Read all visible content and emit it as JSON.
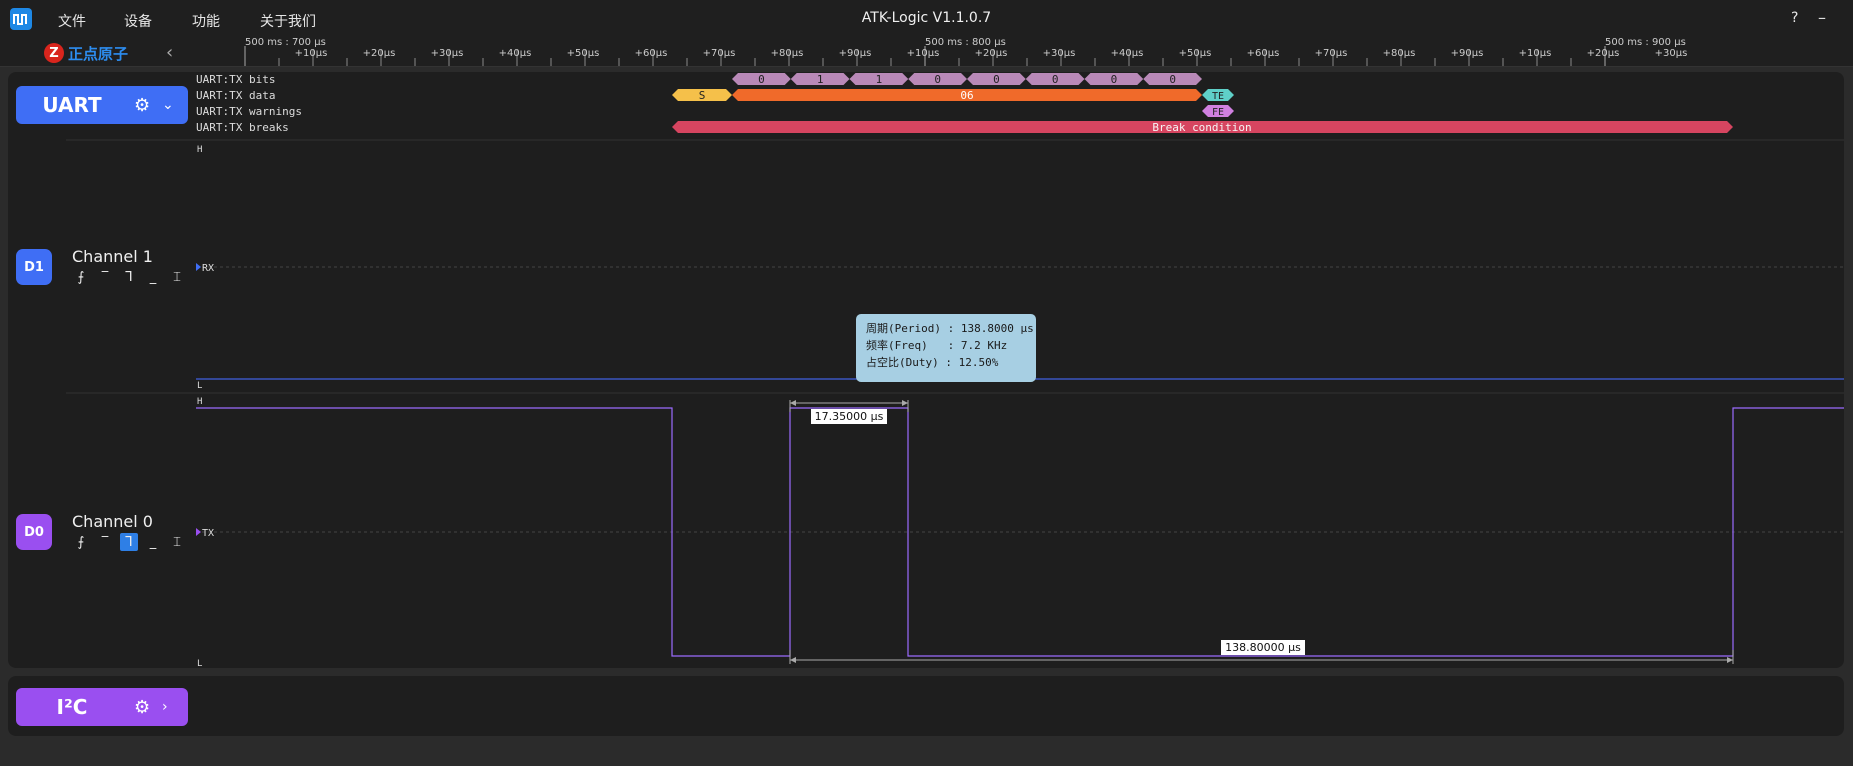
{
  "window": {
    "title": "ATK-Logic  V1.1.0.7",
    "help": "?"
  },
  "menu": [
    "文件",
    "设备",
    "功能",
    "关于我们"
  ],
  "logo": {
    "text": "正点原子"
  },
  "ruler": {
    "top_labels": [
      {
        "text": "500 ms : 700 µs",
        "x": 245
      },
      {
        "text": "500 ms : 800 µs",
        "x": 925
      },
      {
        "text": "500 ms : 900 µs",
        "x": 1605
      }
    ],
    "ticks": [
      "+10µs",
      "+20µs",
      "+30µs",
      "+40µs",
      "+50µs",
      "+60µs",
      "+70µs",
      "+80µs",
      "+90µs",
      "+10µs",
      "+20µs",
      "+30µs",
      "+40µs",
      "+50µs",
      "+60µs",
      "+70µs",
      "+80µs",
      "+90µs",
      "+10µs",
      "+20µs",
      "+30µs"
    ]
  },
  "protocols": [
    {
      "name": "UART",
      "color": "#3f6ef5"
    },
    {
      "name": "I²C",
      "color": "#9a4ff0"
    }
  ],
  "decoder_rows": [
    {
      "label": "UART:TX bits"
    },
    {
      "label": "UART:TX data"
    },
    {
      "label": "UART:TX warnings"
    },
    {
      "label": "UART:TX breaks"
    }
  ],
  "bits": [
    "0",
    "1",
    "1",
    "0",
    "0",
    "0",
    "0",
    "0"
  ],
  "data_start": "S",
  "data_value": "06",
  "data_end": "TE",
  "warning": "FE",
  "break_text": "Break condition",
  "channels": [
    {
      "badge": "D1",
      "name": "Channel 1",
      "signal": "RX",
      "badge_color": "#3f6ef5",
      "line_color": "#4060e0"
    },
    {
      "badge": "D0",
      "name": "Channel 0",
      "signal": "TX",
      "badge_color": "#9a4ff0",
      "line_color": "#9b6bff"
    }
  ],
  "level_high": "H",
  "level_low": "L",
  "measure_pulse": "17.35000 µs",
  "measure_period": "138.80000 µs",
  "tooltip": {
    "line1": "周期(Period) : 138.8000 µs",
    "line2": "频率(Freq)   : 7.2 KHz",
    "line3": "占空比(Duty) : 12.50%"
  }
}
